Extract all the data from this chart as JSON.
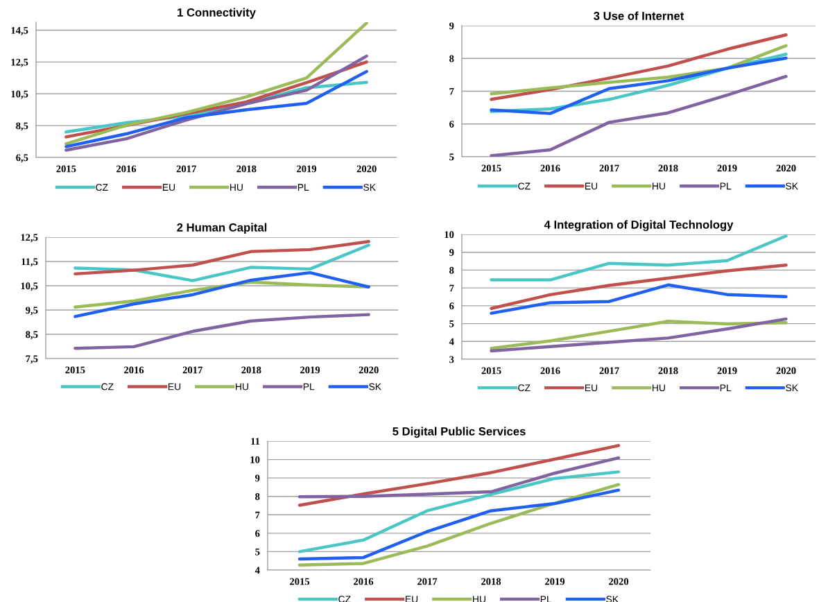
{
  "chart_data": [
    {
      "type": "line",
      "title": "1 Connectivity",
      "categories": [
        "2015",
        "2016",
        "2017",
        "2018",
        "2019",
        "2020"
      ],
      "ylim": [
        6.5,
        15
      ],
      "yticks": [
        {
          "value": 6.5,
          "label": "6,5"
        },
        {
          "value": 8.5,
          "label": "8,5"
        },
        {
          "value": 10.5,
          "label": "10,5"
        },
        {
          "value": 12.5,
          "label": "12,5"
        },
        {
          "value": 14.5,
          "label": "14,5"
        }
      ],
      "grid": "y",
      "legend": "bottom",
      "marker": "none",
      "line_style": "solid",
      "series": [
        {
          "name": "CZ",
          "color": "#4bc6c6",
          "values": [
            8.1,
            8.68,
            9.1,
            9.9,
            10.88,
            11.22
          ]
        },
        {
          "name": "EU",
          "color": "#c0504d",
          "values": [
            7.79,
            8.5,
            9.25,
            9.99,
            11.2,
            12.5
          ]
        },
        {
          "name": "HU",
          "color": "#9bbb59",
          "values": [
            7.36,
            8.52,
            9.33,
            10.31,
            11.5,
            14.95
          ]
        },
        {
          "name": "PL",
          "color": "#8064a2",
          "values": [
            6.96,
            7.67,
            8.85,
            9.87,
            10.72,
            12.87
          ]
        },
        {
          "name": "SK",
          "color": "#2060f0",
          "values": [
            7.18,
            7.98,
            9.0,
            9.5,
            9.9,
            11.9
          ]
        }
      ]
    },
    {
      "type": "line",
      "title": "3 Use of Internet",
      "categories": [
        "2015",
        "2016",
        "2017",
        "2018",
        "2019",
        "2020"
      ],
      "ylim": [
        5,
        9
      ],
      "yticks": [
        5,
        6,
        7,
        8,
        9
      ],
      "grid": "y",
      "legend": "bottom",
      "marker": "none",
      "line_style": "solid",
      "series": [
        {
          "name": "CZ",
          "color": "#4bc6c6",
          "values": [
            6.38,
            6.46,
            6.75,
            7.18,
            7.7,
            8.13
          ]
        },
        {
          "name": "EU",
          "color": "#c0504d",
          "values": [
            6.75,
            7.05,
            7.4,
            7.77,
            8.28,
            8.72
          ]
        },
        {
          "name": "HU",
          "color": "#9bbb59",
          "values": [
            6.92,
            7.1,
            7.27,
            7.43,
            7.7,
            8.39
          ]
        },
        {
          "name": "PL",
          "color": "#8064a2",
          "values": [
            5.03,
            5.21,
            6.05,
            6.34,
            6.88,
            7.45
          ]
        },
        {
          "name": "SK",
          "color": "#2060f0",
          "values": [
            6.43,
            6.32,
            7.08,
            7.32,
            7.7,
            8.01
          ]
        }
      ]
    },
    {
      "type": "line",
      "title": "2 Human Capital",
      "categories": [
        "2015",
        "2016",
        "2017",
        "2018",
        "2019",
        "2020"
      ],
      "ylim": [
        7.5,
        12.5
      ],
      "yticks": [
        {
          "value": 7.5,
          "label": "7,5"
        },
        {
          "value": 8.5,
          "label": "8,5"
        },
        {
          "value": 9.5,
          "label": "9,5"
        },
        {
          "value": 10.5,
          "label": "10,5"
        },
        {
          "value": 11.5,
          "label": "11,5"
        },
        {
          "value": 12.5,
          "label": "12,5"
        }
      ],
      "grid": "y",
      "legend": "bottom",
      "marker": "none",
      "line_style": "solid",
      "series": [
        {
          "name": "CZ",
          "color": "#4bc6c6",
          "values": [
            11.23,
            11.15,
            10.71,
            11.26,
            11.19,
            12.17
          ]
        },
        {
          "name": "EU",
          "color": "#c0504d",
          "values": [
            10.99,
            11.14,
            11.35,
            11.91,
            11.99,
            12.32
          ]
        },
        {
          "name": "HU",
          "color": "#9bbb59",
          "values": [
            9.62,
            9.87,
            10.31,
            10.65,
            10.53,
            10.45
          ]
        },
        {
          "name": "PL",
          "color": "#8064a2",
          "values": [
            7.92,
            7.99,
            8.62,
            9.05,
            9.21,
            9.31
          ]
        },
        {
          "name": "SK",
          "color": "#2060f0",
          "values": [
            9.23,
            9.75,
            10.13,
            10.73,
            11.04,
            10.45
          ]
        }
      ]
    },
    {
      "type": "line",
      "title": "4 Integration of Digital Technology",
      "categories": [
        "2015",
        "2016",
        "2017",
        "2018",
        "2019",
        "2020"
      ],
      "ylim": [
        3,
        10
      ],
      "yticks": [
        3,
        4,
        5,
        6,
        7,
        8,
        9,
        10
      ],
      "grid": "y",
      "legend": "bottom",
      "marker": "none",
      "line_style": "solid",
      "series": [
        {
          "name": "CZ",
          "color": "#4bc6c6",
          "values": [
            7.45,
            7.45,
            8.38,
            8.28,
            8.53,
            9.91
          ]
        },
        {
          "name": "EU",
          "color": "#c0504d",
          "values": [
            5.85,
            6.62,
            7.14,
            7.55,
            7.96,
            8.28
          ]
        },
        {
          "name": "HU",
          "color": "#9bbb59",
          "values": [
            3.61,
            4.03,
            4.57,
            5.13,
            4.98,
            5.05
          ]
        },
        {
          "name": "PL",
          "color": "#8064a2",
          "values": [
            3.47,
            3.71,
            3.95,
            4.19,
            4.7,
            5.26
          ]
        },
        {
          "name": "SK",
          "color": "#2060f0",
          "values": [
            5.58,
            6.17,
            6.24,
            7.17,
            6.63,
            6.51
          ]
        }
      ]
    },
    {
      "type": "line",
      "title": "5 Digital Public Services",
      "categories": [
        "2015",
        "2016",
        "2017",
        "2018",
        "2019",
        "2020"
      ],
      "ylim": [
        4,
        11
      ],
      "yticks": [
        4,
        5,
        6,
        7,
        8,
        9,
        10,
        11
      ],
      "grid": "y",
      "legend": "bottom",
      "marker": "none",
      "line_style": "solid",
      "series": [
        {
          "name": "CZ",
          "color": "#4bc6c6",
          "values": [
            5.0,
            5.63,
            7.22,
            8.11,
            8.97,
            9.33
          ]
        },
        {
          "name": "EU",
          "color": "#c0504d",
          "values": [
            7.52,
            8.13,
            8.69,
            9.29,
            10.02,
            10.76
          ]
        },
        {
          "name": "HU",
          "color": "#9bbb59",
          "values": [
            4.27,
            4.36,
            5.3,
            6.54,
            7.63,
            8.64
          ]
        },
        {
          "name": "PL",
          "color": "#8064a2",
          "values": [
            7.98,
            8.0,
            8.12,
            8.25,
            9.26,
            10.09
          ]
        },
        {
          "name": "SK",
          "color": "#2060f0",
          "values": [
            4.6,
            4.68,
            6.09,
            7.22,
            7.61,
            8.34
          ]
        }
      ]
    }
  ]
}
